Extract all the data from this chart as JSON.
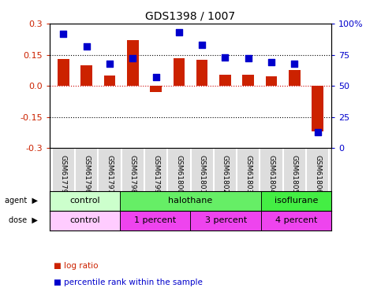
{
  "title": "GDS1398 / 1007",
  "samples": [
    "GSM61779",
    "GSM61796",
    "GSM61797",
    "GSM61798",
    "GSM61799",
    "GSM61800",
    "GSM61801",
    "GSM61802",
    "GSM61803",
    "GSM61804",
    "GSM61805",
    "GSM61806"
  ],
  "log_ratio": [
    0.13,
    0.1,
    0.05,
    0.22,
    -0.03,
    0.135,
    0.125,
    0.055,
    0.055,
    0.045,
    0.075,
    -0.22
  ],
  "percentile_rank": [
    92,
    82,
    68,
    72,
    57,
    93,
    83,
    73,
    72,
    69,
    68,
    13
  ],
  "agent_groups": [
    {
      "label": "control",
      "start": 0,
      "end": 3,
      "color": "#aaffaa"
    },
    {
      "label": "halothane",
      "start": 3,
      "end": 9,
      "color": "#44dd44"
    },
    {
      "label": "isoflurane",
      "start": 9,
      "end": 12,
      "color": "#44dd44"
    }
  ],
  "dose_groups": [
    {
      "label": "control",
      "start": 0,
      "end": 3,
      "color": "#ffaaff"
    },
    {
      "label": "1 percent",
      "start": 3,
      "end": 6,
      "color": "#dd44dd"
    },
    {
      "label": "3 percent",
      "start": 6,
      "end": 9,
      "color": "#dd44dd"
    },
    {
      "label": "4 percent",
      "start": 9,
      "end": 12,
      "color": "#dd44dd"
    }
  ],
  "ylim_left": [
    -0.3,
    0.3
  ],
  "ylim_right": [
    0,
    100
  ],
  "yticks_left": [
    -0.3,
    -0.15,
    0.0,
    0.15,
    0.3
  ],
  "yticks_right": [
    0,
    25,
    50,
    75,
    100
  ],
  "ytick_labels_right": [
    "0",
    "25",
    "50",
    "75",
    "100%"
  ],
  "bar_color": "#cc2200",
  "dot_color": "#0000cc",
  "hline_color": "#888888",
  "zero_line_color": "#cc0000",
  "background_color": "#ffffff",
  "label_agent": "agent",
  "label_dose": "dose",
  "legend_log_ratio": "log ratio",
  "legend_percentile": "percentile rank within the sample"
}
